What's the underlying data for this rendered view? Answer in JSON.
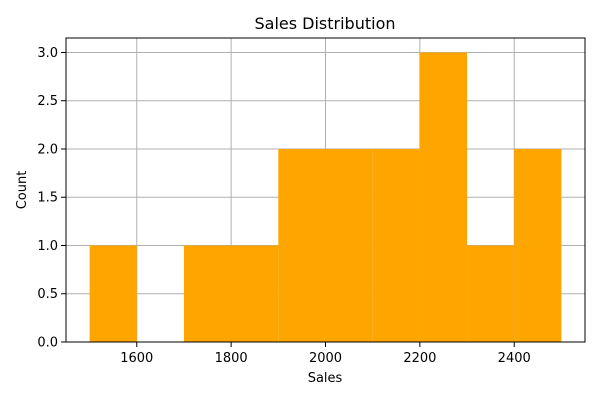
{
  "chart_data": {
    "type": "bar",
    "title": "Sales Distribution",
    "xlabel": "Sales",
    "ylabel": "Count",
    "bins": [
      {
        "x0": 1500,
        "x1": 1600,
        "count": 1
      },
      {
        "x0": 1600,
        "x1": 1700,
        "count": 0
      },
      {
        "x0": 1700,
        "x1": 1800,
        "count": 1
      },
      {
        "x0": 1800,
        "x1": 1900,
        "count": 1
      },
      {
        "x0": 1900,
        "x1": 2000,
        "count": 2
      },
      {
        "x0": 2000,
        "x1": 2100,
        "count": 2
      },
      {
        "x0": 2100,
        "x1": 2200,
        "count": 2
      },
      {
        "x0": 2200,
        "x1": 2300,
        "count": 3
      },
      {
        "x0": 2300,
        "x1": 2400,
        "count": 1
      },
      {
        "x0": 2400,
        "x1": 2500,
        "count": 2
      }
    ],
    "xlim": [
      1450,
      2550
    ],
    "ylim": [
      0,
      3.15
    ],
    "xticks": [
      1600,
      1800,
      2000,
      2200,
      2400
    ],
    "yticks": [
      0.0,
      0.5,
      1.0,
      1.5,
      2.0,
      2.5,
      3.0
    ],
    "grid": true,
    "bar_color": "#ffa500"
  }
}
